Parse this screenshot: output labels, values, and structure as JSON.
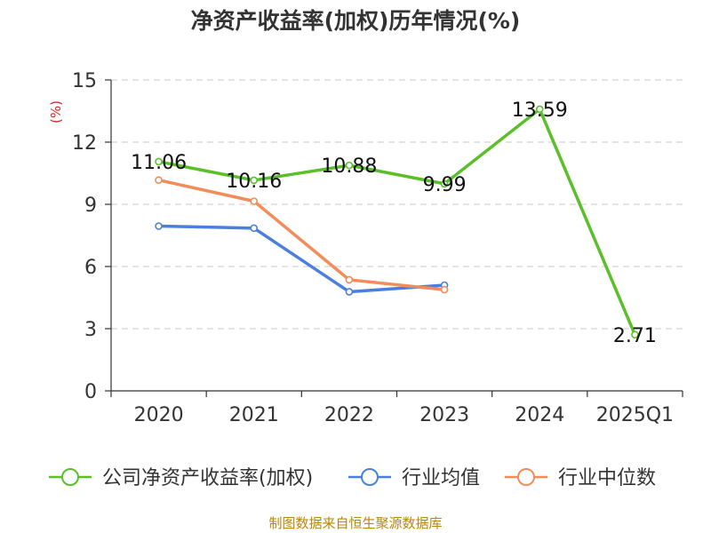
{
  "chart_data": {
    "type": "line",
    "title": "净资产收益率(加权)历年情况(%)",
    "ylabel": "(%)",
    "xlabel": "",
    "categories": [
      "2020",
      "2021",
      "2022",
      "2023",
      "2024",
      "2025Q1"
    ],
    "ylim": [
      0,
      15
    ],
    "yticks": [
      0,
      3,
      6,
      9,
      12,
      15
    ],
    "grid": true,
    "legend_position": "bottom",
    "series": [
      {
        "name": "公司净资产收益率(加权)",
        "color": "#5bbf2a",
        "values": [
          11.06,
          10.16,
          10.88,
          9.99,
          13.59,
          2.71
        ],
        "labels": [
          "11.06",
          "10.16",
          "10.88",
          "9.99",
          "13.59",
          "2.71"
        ]
      },
      {
        "name": "行业均值",
        "color": "#4a7fdb",
        "values": [
          7.95,
          7.85,
          4.78,
          5.1,
          null,
          null
        ]
      },
      {
        "name": "行业中位数",
        "color": "#f28c5a",
        "values": [
          10.17,
          9.15,
          5.36,
          4.88,
          null,
          null
        ]
      }
    ]
  },
  "source": "制图数据来自恒生聚源数据库"
}
